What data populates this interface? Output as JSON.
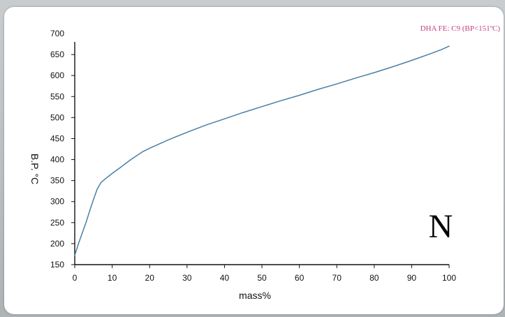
{
  "annotation": "DHA FE: C9 (BP<151ºC)",
  "corner_letter": "N",
  "colors": {
    "line": "#4a7fa6",
    "axis": "#111111",
    "annotation": "#c13d8a"
  },
  "chart_data": {
    "type": "line",
    "xlabel": "mass%",
    "ylabel": "B.P. °C",
    "xlim": [
      0,
      100
    ],
    "ylim": [
      150,
      700
    ],
    "xticks": [
      0,
      10,
      20,
      30,
      40,
      50,
      60,
      70,
      80,
      90,
      100
    ],
    "yticks": [
      150,
      200,
      250,
      300,
      350,
      400,
      450,
      500,
      550,
      600,
      650,
      700
    ],
    "grid": false,
    "series": [
      {
        "x": [
          0,
          1,
          2,
          3,
          4,
          5,
          6,
          7,
          8,
          10,
          12,
          15,
          18,
          20,
          25,
          30,
          35,
          40,
          45,
          50,
          55,
          60,
          65,
          70,
          75,
          80,
          85,
          90,
          95,
          98,
          100
        ],
        "y": [
          172,
          200,
          225,
          250,
          278,
          305,
          330,
          345,
          353,
          367,
          380,
          400,
          418,
          427,
          447,
          465,
          482,
          497,
          512,
          526,
          540,
          553,
          567,
          580,
          594,
          607,
          621,
          636,
          652,
          662,
          670
        ]
      }
    ]
  }
}
